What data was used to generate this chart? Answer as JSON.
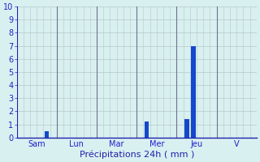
{
  "background_color": "#d8f0f0",
  "grid_color": "#b8c8c8",
  "separator_color": "#707090",
  "axis_color": "#2020aa",
  "bar_color": "#1448cc",
  "tick_color": "#2020cc",
  "xlabel": "Précipitations 24h ( mm )",
  "xlabel_color": "#2020aa",
  "xlabel_fontsize": 8,
  "tick_fontsize": 7,
  "ylim": [
    0,
    10
  ],
  "yticks": [
    0,
    1,
    2,
    3,
    4,
    5,
    6,
    7,
    8,
    9,
    10
  ],
  "num_cols": 36,
  "day_labels": [
    "Sam",
    "Lun",
    "Mar",
    "Mer",
    "Jeu",
    "V"
  ],
  "day_col_starts": [
    0,
    6,
    12,
    18,
    24,
    30
  ],
  "day_separator_cols": [
    6,
    12,
    18,
    24,
    30
  ],
  "bar_data": [
    {
      "col": 4,
      "value": 0.5
    },
    {
      "col": 19,
      "value": 1.2
    },
    {
      "col": 25,
      "value": 1.4
    },
    {
      "col": 26,
      "value": 7.0
    }
  ]
}
